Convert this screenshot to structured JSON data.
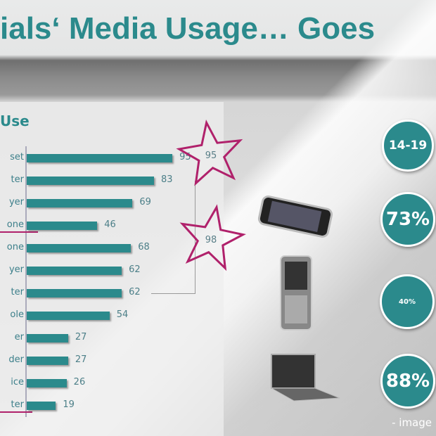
{
  "title": "ials‘ Media Usage… Goes",
  "chart_data": {
    "type": "bar",
    "orientation": "horizontal",
    "title": "Use",
    "categories": [
      "set",
      "ter",
      "yer",
      "one",
      "one",
      "yer",
      "ter",
      "ole",
      "er",
      "der",
      "ice",
      "ter"
    ],
    "values": [
      95,
      83,
      69,
      46,
      68,
      62,
      62,
      54,
      27,
      27,
      26,
      19
    ],
    "underlined_categories": [
      3,
      11
    ],
    "bar_color": "#2b8a8c",
    "annotations": [
      {
        "type": "star",
        "label": "95"
      },
      {
        "type": "star",
        "label": "98"
      }
    ]
  },
  "badges": [
    "14-19",
    "73%",
    "40%",
    "88%"
  ],
  "badge_color": "#2b8a8c",
  "star_color": "#b0216b",
  "footer": "- image",
  "devices": [
    "smartphone-icon",
    "slider-phone-icon",
    "laptop-icon"
  ]
}
